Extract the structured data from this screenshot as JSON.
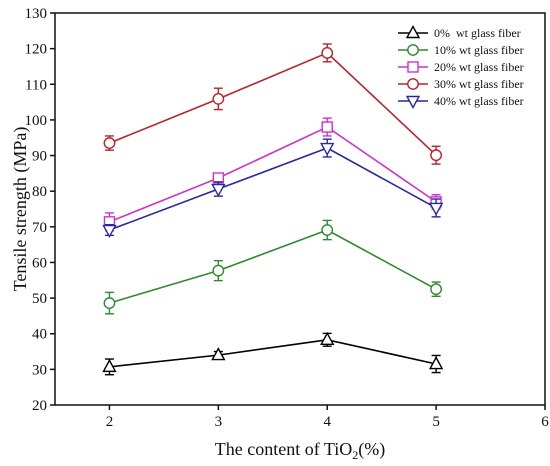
{
  "chart_data": {
    "type": "line",
    "x": [
      2,
      3,
      4,
      5
    ],
    "xlim": [
      1.5,
      6
    ],
    "ylim": [
      20,
      130
    ],
    "xticks": [
      2,
      3,
      4,
      5,
      6
    ],
    "yticks": [
      20,
      30,
      40,
      50,
      60,
      70,
      80,
      90,
      100,
      110,
      120,
      130
    ],
    "ylabel": "Tensile strength (MPa)",
    "xlabel": {
      "text": "The content of TiO",
      "subscript": "2",
      "suffix": "(%)"
    },
    "grid": false,
    "legend_position": "top-right",
    "series": [
      {
        "name": "0%  wt glass fiber",
        "color": "#000000",
        "marker": "triangle-up",
        "values": [
          30.7,
          34.0,
          38.3,
          31.5
        ],
        "errors": [
          2.2,
          1.0,
          1.8,
          2.4
        ]
      },
      {
        "name": "10% wt glass fiber",
        "color": "#2f8a2f",
        "marker": "circle",
        "values": [
          48.6,
          57.7,
          69.1,
          52.5
        ],
        "errors": [
          3.0,
          2.8,
          2.7,
          2.0
        ]
      },
      {
        "name": "20% wt glass fiber",
        "color": "#cc33cc",
        "marker": "square",
        "values": [
          71.4,
          83.7,
          98.0,
          77.0
        ],
        "errors": [
          2.5,
          1.3,
          2.5,
          2.0
        ]
      },
      {
        "name": "30% wt glass fiber",
        "color": "#b8242a",
        "marker": "circle",
        "values": [
          93.5,
          105.9,
          118.8,
          90.1
        ],
        "errors": [
          2.0,
          3.0,
          2.5,
          2.5
        ]
      },
      {
        "name": "40% wt glass fiber",
        "color": "#2828a0",
        "marker": "triangle-down",
        "values": [
          69.1,
          80.6,
          92.1,
          75.3
        ],
        "errors": [
          1.5,
          2.0,
          2.5,
          2.5
        ]
      }
    ]
  }
}
